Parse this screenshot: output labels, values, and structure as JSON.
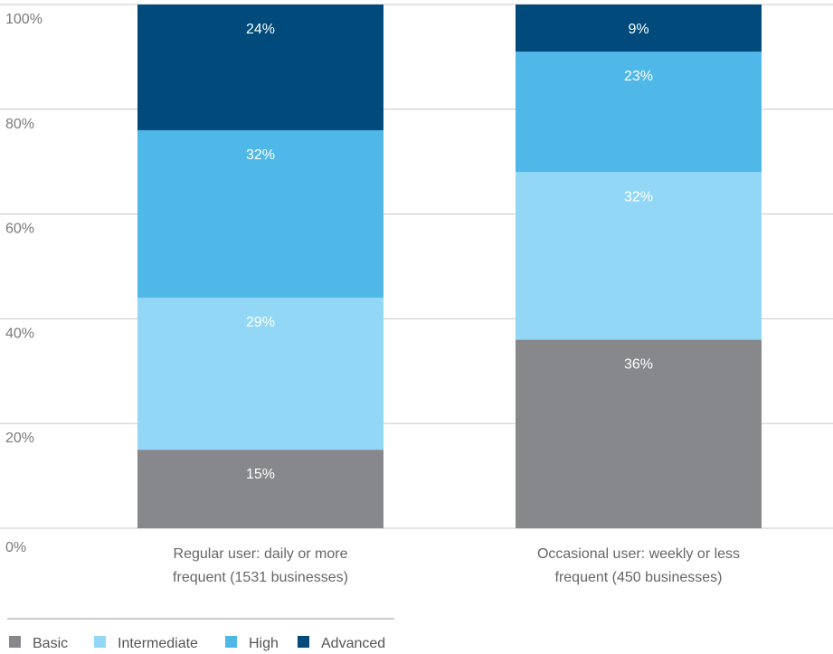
{
  "chart_data": {
    "type": "bar",
    "stacked": true,
    "categories": [
      [
        "Regular user: daily or more",
        "frequent (1531 businesses)"
      ],
      [
        "Occasional user: weekly or less",
        "frequent (450 businesses)"
      ]
    ],
    "series": [
      {
        "name": "Basic",
        "values": [
          15,
          36
        ],
        "labels": [
          "15%",
          "36%"
        ],
        "color": "#87888b",
        "label_color": "#ffffff"
      },
      {
        "name": "Intermediate",
        "values": [
          29,
          32
        ],
        "labels": [
          "29%",
          "32%"
        ],
        "color": "#92d8f6",
        "label_color": "#ffffff"
      },
      {
        "name": "High",
        "values": [
          32,
          23
        ],
        "labels": [
          "32%",
          "23%"
        ],
        "color": "#4fb8e8",
        "label_color": "#ffffff"
      },
      {
        "name": "Advanced",
        "values": [
          24,
          9
        ],
        "labels": [
          "24%",
          "9%"
        ],
        "color": "#004a7c",
        "label_color": "#ffffff"
      }
    ],
    "y_ticks": [
      "0%",
      "20%",
      "40%",
      "60%",
      "80%",
      "100%"
    ],
    "ylim": [
      0,
      100
    ],
    "grid": true,
    "legend_position": "bottom-left"
  }
}
